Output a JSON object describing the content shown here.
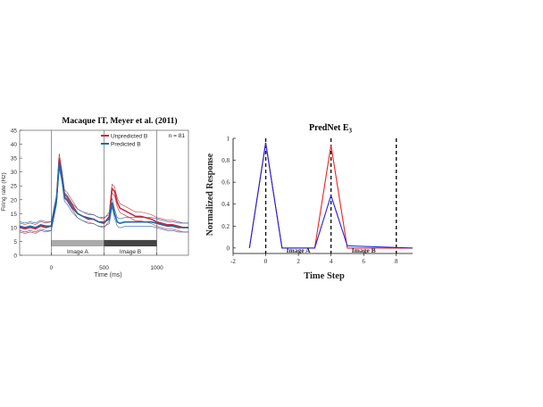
{
  "chart_data": [
    {
      "type": "line",
      "title": "Macaque IT, Meyer et al. (2011)",
      "xlabel": "Time (ms)",
      "ylabel": "Firing rate (Hz)",
      "xlim": [
        -300,
        1300
      ],
      "ylim": [
        0,
        45
      ],
      "x_ticks": [
        "0",
        "500",
        "1000"
      ],
      "y_ticks": [
        "0",
        "5",
        "10",
        "15",
        "20",
        "25",
        "30",
        "35",
        "40",
        "45"
      ],
      "annotation": "n = 81",
      "bars": [
        {
          "label": "Image A",
          "start": 0,
          "end": 500,
          "color": "#aaaaaa"
        },
        {
          "label": "Image B",
          "start": 500,
          "end": 1000,
          "color": "#444444"
        }
      ],
      "vlines": [
        0,
        500,
        1000
      ],
      "legend_position": "top-left",
      "x": [
        -300,
        -250,
        -200,
        -150,
        -100,
        -50,
        0,
        50,
        75,
        100,
        125,
        150,
        200,
        250,
        300,
        350,
        400,
        450,
        500,
        550,
        575,
        600,
        625,
        650,
        700,
        750,
        800,
        850,
        900,
        950,
        1000,
        1050,
        1100,
        1150,
        1200,
        1250,
        1300
      ],
      "series": [
        {
          "name": "Unpredicted B",
          "color": "#c62b3c",
          "values": [
            10,
            9.5,
            10,
            9.5,
            10.5,
            10,
            10.5,
            20,
            35,
            29,
            22,
            21,
            18,
            15,
            14,
            13.5,
            13,
            12,
            11.5,
            14,
            24,
            23,
            19,
            17,
            16,
            15,
            14,
            14,
            13.5,
            13,
            12,
            11.5,
            11,
            11,
            10.5,
            10,
            10
          ]
        },
        {
          "name": "Predicted B",
          "color": "#2167a8",
          "values": [
            10.5,
            10,
            10.5,
            10,
            11,
            10.5,
            10.5,
            20,
            33,
            28,
            21,
            20,
            17,
            15,
            14,
            13,
            13,
            12,
            12,
            13,
            19,
            15,
            12,
            11.5,
            12,
            12,
            12,
            12,
            12,
            12,
            11.5,
            11,
            10.5,
            10.5,
            10,
            10,
            10
          ]
        }
      ]
    },
    {
      "type": "line",
      "title": "PredNet E",
      "title_subscript": "3",
      "xlabel": "Time Step",
      "ylabel": "Normalized Response",
      "xlim": [
        -2,
        9
      ],
      "ylim": [
        -0.05,
        1
      ],
      "x_ticks": [
        "-2",
        "0",
        "2",
        "4",
        "6",
        "8"
      ],
      "y_ticks": [
        "0",
        "0.2",
        "0.4",
        "0.6",
        "0.8",
        "1"
      ],
      "vlines": [
        0,
        4,
        8
      ],
      "labels": [
        {
          "text": "Image A",
          "x": 2
        },
        {
          "text": "Image B",
          "x": 6
        }
      ],
      "x": [
        -1,
        0,
        1,
        3,
        4,
        5,
        9
      ],
      "series": [
        {
          "color": "#ee2222",
          "values": [
            0,
            0.96,
            0,
            0,
            0.94,
            0,
            0
          ]
        },
        {
          "color": "#2222dd",
          "values": [
            0,
            0.96,
            0,
            0,
            0.48,
            0.02,
            0
          ]
        }
      ]
    }
  ]
}
